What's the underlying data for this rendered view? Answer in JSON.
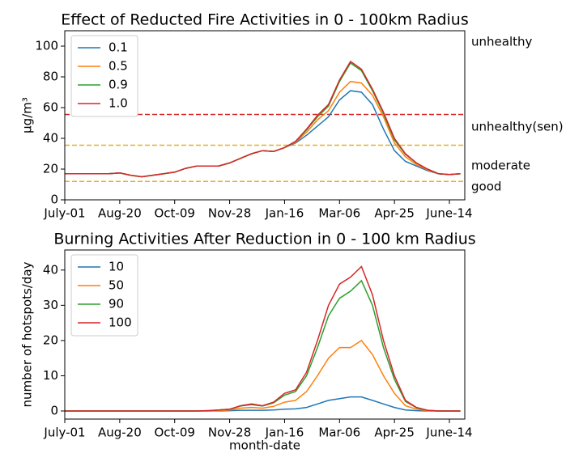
{
  "chart_data": [
    {
      "type": "line",
      "title": "Effect of Reducted Fire Activities in 0 - 100km Radius",
      "ylabel": "μg/m³",
      "x": [
        0,
        10,
        20,
        30,
        40,
        50,
        60,
        70,
        80,
        90,
        100,
        110,
        120,
        130,
        140,
        150,
        160,
        170,
        180,
        190,
        200,
        210,
        220,
        230,
        240,
        250,
        260,
        270,
        280,
        290,
        300,
        310,
        320,
        330,
        340,
        350,
        360
      ],
      "xlim": [
        0,
        364
      ],
      "ylim": [
        0,
        110
      ],
      "xticks": [
        {
          "value": 0,
          "label": "July-01"
        },
        {
          "value": 50,
          "label": "Aug-20"
        },
        {
          "value": 100,
          "label": "Oct-09"
        },
        {
          "value": 150,
          "label": "Nov-28"
        },
        {
          "value": 200,
          "label": "Jan-16"
        },
        {
          "value": 250,
          "label": "Mar-06"
        },
        {
          "value": 300,
          "label": "Apr-25"
        },
        {
          "value": 350,
          "label": "June-14"
        }
      ],
      "yticks": [
        0,
        20,
        40,
        60,
        80,
        100
      ],
      "legend": "upper left",
      "series": [
        {
          "name": "0.1",
          "color": "#1f77b4",
          "values": [
            17,
            17,
            17,
            17,
            17,
            17.5,
            16,
            15,
            16,
            17,
            18,
            20.5,
            22,
            22,
            22,
            24,
            27,
            30,
            32,
            31.5,
            34,
            37,
            42,
            48,
            54,
            65,
            71,
            70,
            62,
            46,
            32,
            25,
            22,
            19,
            17,
            16.5,
            17
          ]
        },
        {
          "name": "0.5",
          "color": "#ff7f0e",
          "values": [
            17,
            17,
            17,
            17,
            17,
            17.5,
            16,
            15,
            16,
            17,
            18,
            20.5,
            22,
            22,
            22,
            24,
            27,
            30,
            32,
            31.5,
            34,
            37.5,
            44,
            52,
            58,
            70,
            77,
            76,
            68,
            54,
            37,
            28,
            23,
            19.5,
            17,
            16.5,
            17
          ]
        },
        {
          "name": "0.9",
          "color": "#2ca02c",
          "values": [
            17,
            17,
            17,
            17,
            17,
            17.5,
            16,
            15,
            16,
            17,
            18,
            20.5,
            22,
            22,
            22,
            24,
            27,
            30,
            32,
            31.5,
            34,
            38,
            45.5,
            54,
            61,
            77,
            89,
            84,
            71,
            56,
            39,
            29.5,
            24,
            20,
            17,
            16.5,
            17
          ]
        },
        {
          "name": "1.0",
          "color": "#d62728",
          "values": [
            17,
            17,
            17,
            17,
            17,
            17.5,
            16,
            15,
            16,
            17,
            18,
            20.5,
            22,
            22,
            22,
            24,
            27,
            30,
            32,
            31.5,
            34,
            38,
            46,
            55,
            62,
            78,
            90,
            85,
            72,
            57,
            40,
            30,
            24,
            20,
            17,
            16.5,
            17
          ]
        }
      ],
      "reference_lines": [
        {
          "value": 55.5,
          "color": "#d62728"
        },
        {
          "value": 35.5,
          "color": "#e8b020"
        },
        {
          "value": 12,
          "color": "#e8b020"
        }
      ],
      "annotations": [
        {
          "text": "unhealthy",
          "y": 102.6
        },
        {
          "text": "unhealthy(sen)",
          "y": 47.4
        },
        {
          "text": "moderate",
          "y": 22
        },
        {
          "text": "good",
          "y": 8.4
        }
      ]
    },
    {
      "type": "line",
      "title": "Burning Activities After Reduction in 0 - 100 km Radius",
      "ylabel": "number of hotspots/day",
      "xlabel": "month-date",
      "x": [
        0,
        10,
        20,
        30,
        40,
        50,
        60,
        70,
        80,
        90,
        100,
        110,
        120,
        130,
        140,
        150,
        160,
        170,
        180,
        190,
        200,
        210,
        220,
        230,
        240,
        250,
        260,
        270,
        280,
        290,
        300,
        310,
        320,
        330,
        340,
        350,
        360
      ],
      "xlim": [
        0,
        364
      ],
      "ylim": [
        -2.3,
        45.7
      ],
      "xticks": [
        {
          "value": 0,
          "label": "July-01"
        },
        {
          "value": 50,
          "label": "Aug-20"
        },
        {
          "value": 100,
          "label": "Oct-09"
        },
        {
          "value": 150,
          "label": "Nov-28"
        },
        {
          "value": 200,
          "label": "Jan-16"
        },
        {
          "value": 250,
          "label": "Mar-06"
        },
        {
          "value": 300,
          "label": "Apr-25"
        },
        {
          "value": 350,
          "label": "June-14"
        }
      ],
      "yticks": [
        0,
        10,
        20,
        30,
        40
      ],
      "legend": "upper left",
      "series": [
        {
          "name": "10",
          "color": "#1f77b4",
          "values": [
            0,
            0,
            0,
            0,
            0,
            0,
            0,
            0,
            0,
            0,
            0,
            0,
            0,
            0,
            0,
            0.1,
            0.2,
            0.2,
            0.2,
            0.3,
            0.5,
            0.6,
            1,
            2,
            3,
            3.5,
            4,
            4,
            3,
            2,
            1,
            0.3,
            0.1,
            0,
            0,
            0,
            0
          ]
        },
        {
          "name": "50",
          "color": "#ff7f0e",
          "values": [
            0,
            0,
            0,
            0,
            0,
            0,
            0,
            0,
            0,
            0,
            0,
            0,
            0,
            0,
            0.1,
            0.3,
            0.8,
            1,
            0.8,
            1.3,
            2.5,
            3,
            5.5,
            10,
            15,
            18,
            18,
            20,
            16,
            10,
            5,
            1.5,
            0.5,
            0.1,
            0,
            0,
            0
          ]
        },
        {
          "name": "90",
          "color": "#2ca02c",
          "values": [
            0,
            0,
            0,
            0,
            0,
            0,
            0,
            0,
            0,
            0,
            0,
            0,
            0,
            0.1,
            0.3,
            0.5,
            1.4,
            1.8,
            1.4,
            2.3,
            4.5,
            5.5,
            10,
            18,
            27,
            32,
            34,
            37,
            30,
            18,
            9,
            2.7,
            0.9,
            0.2,
            0,
            0,
            0
          ]
        },
        {
          "name": "100",
          "color": "#d62728",
          "values": [
            0,
            0,
            0,
            0,
            0,
            0,
            0,
            0,
            0,
            0,
            0,
            0,
            0,
            0.1,
            0.3,
            0.5,
            1.5,
            2,
            1.5,
            2.5,
            5,
            6,
            11,
            20,
            30,
            36,
            38,
            41,
            33,
            20,
            10,
            3,
            1,
            0.2,
            0,
            0,
            0
          ]
        }
      ]
    }
  ]
}
